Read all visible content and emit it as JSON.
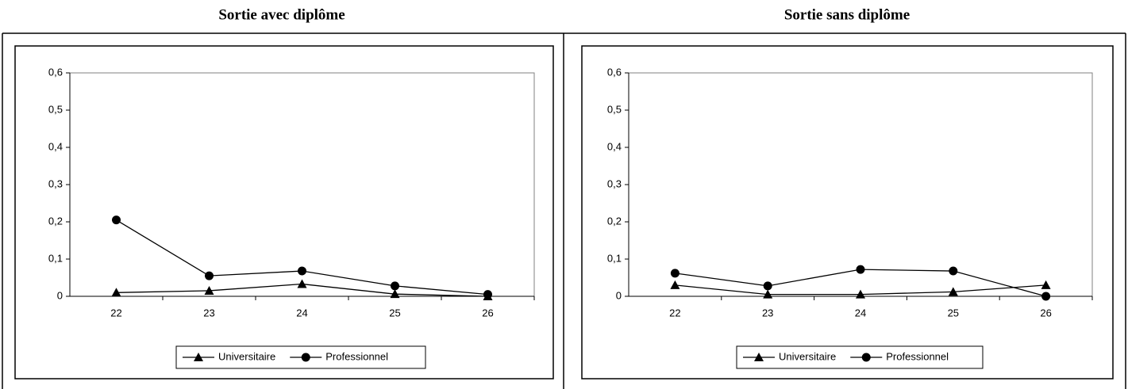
{
  "chart_data": [
    {
      "type": "line",
      "title": "Sortie avec diplôme",
      "categories": [
        "22",
        "23",
        "24",
        "25",
        "26"
      ],
      "series": [
        {
          "name": "Universitaire",
          "color": "#000000",
          "marker": "triangle",
          "values": [
            0.01,
            0.015,
            0.033,
            0.006,
            0.0
          ]
        },
        {
          "name": "Professionnel",
          "color": "#000000",
          "marker": "circle",
          "values": [
            0.205,
            0.055,
            0.068,
            0.028,
            0.005
          ]
        }
      ],
      "ylim": [
        0,
        0.6
      ],
      "yticks": [
        0,
        {
          "value": 0.1,
          "label": "0,1"
        },
        {
          "value": 0.2,
          "label": "0,2"
        },
        {
          "value": 0.3,
          "label": "0,3"
        },
        {
          "value": 0.4,
          "label": "0,4"
        },
        {
          "value": 0.5,
          "label": "0,5"
        },
        {
          "value": 0.6,
          "label": "0,6"
        }
      ],
      "legend": "bottom"
    },
    {
      "type": "line",
      "title": "Sortie sans diplôme",
      "categories": [
        "22",
        "23",
        "24",
        "25",
        "26"
      ],
      "series": [
        {
          "name": "Universitaire",
          "color": "#000000",
          "marker": "triangle",
          "values": [
            0.03,
            0.005,
            0.005,
            0.012,
            0.03
          ]
        },
        {
          "name": "Professionnel",
          "color": "#000000",
          "marker": "circle",
          "values": [
            0.062,
            0.028,
            0.072,
            0.068,
            0.0
          ]
        }
      ],
      "ylim": [
        0,
        0.6
      ],
      "yticks": [
        0,
        {
          "value": 0.1,
          "label": "0,1"
        },
        {
          "value": 0.2,
          "label": "0,2"
        },
        {
          "value": 0.3,
          "label": "0,3"
        },
        {
          "value": 0.4,
          "label": "0,4"
        },
        {
          "value": 0.5,
          "label": "0,5"
        },
        {
          "value": 0.6,
          "label": "0,6"
        }
      ],
      "legend": "bottom"
    }
  ]
}
